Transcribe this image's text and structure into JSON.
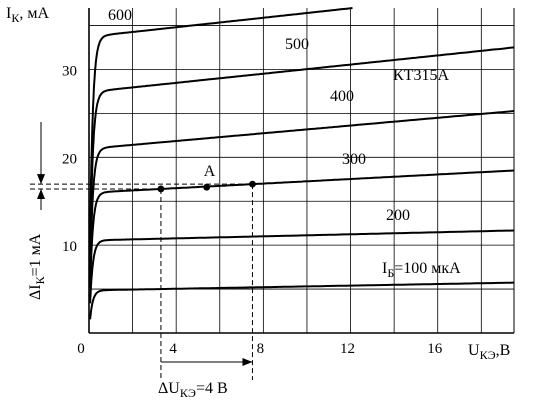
{
  "chart_data": {
    "type": "line",
    "title": "КТ315А",
    "ylabel": "I",
    "ylabel_sub": "К",
    "ylabel_unit": ", мА",
    "xlabel": "U",
    "xlabel_sub": "КЭ",
    "xlabel_unit": ",В",
    "xlim": [
      0,
      19.5
    ],
    "ylim": [
      0,
      37
    ],
    "grid": true,
    "x_ticks": [
      {
        "value": 0,
        "label": "0"
      },
      {
        "value": 4,
        "label": "4"
      },
      {
        "value": 8,
        "label": "8"
      },
      {
        "value": 12,
        "label": "12"
      },
      {
        "value": 16,
        "label": "16"
      }
    ],
    "y_ticks": [
      {
        "value": 10,
        "label": "10"
      },
      {
        "value": 20,
        "label": "20"
      },
      {
        "value": 30,
        "label": "30"
      }
    ],
    "series": [
      {
        "name": "600",
        "sat_i": 34,
        "slope": 0.27
      },
      {
        "name": "500",
        "sat_i": 27.7,
        "slope": 0.26
      },
      {
        "name": "400",
        "sat_i": 21.2,
        "slope": 0.22
      },
      {
        "name": "300",
        "sat_i": 16.1,
        "slope": 0.13
      },
      {
        "name": "200",
        "sat_i": 10.6,
        "slope": 0.058
      },
      {
        "name": "100 мкА",
        "sat_i": 4.9,
        "slope": 0.045
      }
    ],
    "series_label_prefix_sub": "Б",
    "operating_points": [
      {
        "x": 3.3,
        "y": 16.4,
        "label": ""
      },
      {
        "x": 5.4,
        "y": 16.6,
        "label": "A"
      },
      {
        "x": 7.5,
        "y": 16.95,
        "label": ""
      }
    ],
    "delta_u": {
      "x_from": 3.3,
      "x_to": 7.5,
      "prefix": "Δ",
      "sym": "U",
      "sub": "КЭ",
      "value": "=4 В"
    },
    "delta_i": {
      "y_from": 16.4,
      "y_to": 16.95,
      "prefix": "Δ",
      "sym": "I",
      "sub": "К",
      "value": "=1 мА"
    }
  }
}
